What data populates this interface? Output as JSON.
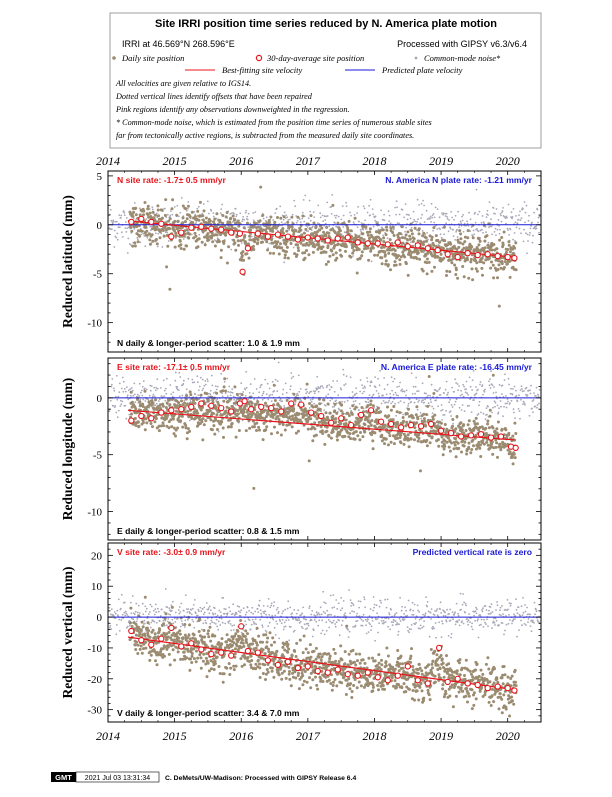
{
  "header": {
    "title": "Site IRRI position time series reduced by N. America plate motion",
    "site_coords": "IRRI at 46.569°N 268.596°E",
    "processed": "Processed with GIPSY v6.3/v6.4",
    "legend": {
      "daily": "Daily site position",
      "avg30": "30-day-average site position",
      "cm_noise": "Common-mode noise*",
      "best_fit": "Best-fitting site velocity",
      "predicted": "Predicted plate velocity"
    },
    "notes": [
      "All velocities are given relative to IGS14.",
      "Dotted vertical lines identify offsets that have been repaired",
      "Pink regions identify any observations downweighted in the regression.",
      "* Common-mode noise, which is estimated from the position time series of numerous stable sites",
      "far from tectonically active regions, is subtracted from the measured daily site coordinates."
    ]
  },
  "colors": {
    "daily": "#9b8b70",
    "avg30": "#e8141c",
    "cm_noise": "#a8a8b8",
    "best_fit": "#e8141c",
    "predicted": "#1a1ad8",
    "panel_border": "#000000"
  },
  "chart_data": [
    {
      "type": "scatter",
      "component": "N",
      "ylabel": "Reduced latitude (mm)",
      "xlim": [
        2014.0,
        2020.5
      ],
      "ylim": [
        -13,
        5.5
      ],
      "yticks": [
        5,
        0,
        -5,
        -10
      ],
      "xticks": [
        2014,
        2015,
        2016,
        2017,
        2018,
        2019,
        2020
      ],
      "site_rate_text": "N site rate:  -1.7± 0.5 mm/yr",
      "plate_rate_text": "N. America N plate rate: -1.21 mm/yr",
      "scatter_text": "N daily & longer-period scatter:   1.0 &   1.9 mm",
      "fit_line": {
        "x": [
          2014.3,
          2020.1
        ],
        "y": [
          0.4,
          -3.3
        ]
      },
      "predicted_line": {
        "y": 0
      },
      "avg30": [
        [
          2014.35,
          0.3
        ],
        [
          2014.5,
          0.6
        ],
        [
          2014.65,
          0.3
        ],
        [
          2014.8,
          0.1
        ],
        [
          2014.95,
          -1.2
        ],
        [
          2015.1,
          -0.8
        ],
        [
          2015.25,
          -0.3
        ],
        [
          2015.4,
          -0.2
        ],
        [
          2015.55,
          -0.4
        ],
        [
          2015.7,
          -0.5
        ],
        [
          2015.85,
          -0.8
        ],
        [
          2015.98,
          -0.9
        ],
        [
          2016.02,
          -4.8
        ],
        [
          2016.1,
          -2.4
        ],
        [
          2016.25,
          -0.9
        ],
        [
          2016.4,
          -1.2
        ],
        [
          2016.55,
          -1.0
        ],
        [
          2016.7,
          -1.2
        ],
        [
          2016.85,
          -1.5
        ],
        [
          2017.0,
          -1.3
        ],
        [
          2017.15,
          -1.4
        ],
        [
          2017.3,
          -1.6
        ],
        [
          2017.45,
          -1.4
        ],
        [
          2017.6,
          -1.3
        ],
        [
          2017.75,
          -1.8
        ],
        [
          2017.9,
          -1.9
        ],
        [
          2018.05,
          -1.9
        ],
        [
          2018.2,
          -2.0
        ],
        [
          2018.35,
          -1.8
        ],
        [
          2018.5,
          -2.2
        ],
        [
          2018.65,
          -2.1
        ],
        [
          2018.8,
          -2.4
        ],
        [
          2018.95,
          -2.6
        ],
        [
          2019.1,
          -3.0
        ],
        [
          2019.25,
          -3.3
        ],
        [
          2019.4,
          -2.9
        ],
        [
          2019.55,
          -3.1
        ],
        [
          2019.7,
          -3.0
        ],
        [
          2019.85,
          -3.2
        ],
        [
          2020.0,
          -3.3
        ],
        [
          2020.1,
          -3.4
        ]
      ]
    },
    {
      "type": "scatter",
      "component": "E",
      "ylabel": "Reduced longitude (mm)",
      "xlim": [
        2014.0,
        2020.5
      ],
      "ylim": [
        -12.5,
        3.5
      ],
      "yticks": [
        0,
        -5,
        -10
      ],
      "xticks": [
        2014,
        2015,
        2016,
        2017,
        2018,
        2019,
        2020
      ],
      "site_rate_text": "E site rate:  -17.1± 0.5 mm/yr",
      "plate_rate_text": "N. America E plate rate: -16.45 mm/yr",
      "scatter_text": "E daily & longer-period scatter:   0.8 &   1.5 mm",
      "fit_line": {
        "x": [
          2014.3,
          2020.1
        ],
        "y": [
          -1.1,
          -3.7
        ]
      },
      "predicted_line": {
        "y": 0
      },
      "avg30": [
        [
          2014.35,
          -2.0
        ],
        [
          2014.5,
          -1.6
        ],
        [
          2014.65,
          -1.8
        ],
        [
          2014.8,
          -1.3
        ],
        [
          2014.95,
          -1.1
        ],
        [
          2015.1,
          -1.0
        ],
        [
          2015.25,
          -0.8
        ],
        [
          2015.4,
          -0.5
        ],
        [
          2015.55,
          -0.7
        ],
        [
          2015.7,
          -0.9
        ],
        [
          2015.85,
          -1.2
        ],
        [
          2015.98,
          -0.5
        ],
        [
          2016.05,
          -0.3
        ],
        [
          2016.15,
          -1.0
        ],
        [
          2016.3,
          -0.8
        ],
        [
          2016.45,
          -0.9
        ],
        [
          2016.6,
          -1.2
        ],
        [
          2016.75,
          -0.5
        ],
        [
          2016.9,
          -0.6
        ],
        [
          2017.05,
          -1.3
        ],
        [
          2017.2,
          -1.6
        ],
        [
          2017.35,
          -2.2
        ],
        [
          2017.5,
          -1.8
        ],
        [
          2017.65,
          -2.4
        ],
        [
          2017.8,
          -1.5
        ],
        [
          2017.95,
          -1.1
        ],
        [
          2018.1,
          -2.1
        ],
        [
          2018.25,
          -2.3
        ],
        [
          2018.4,
          -2.6
        ],
        [
          2018.55,
          -2.4
        ],
        [
          2018.7,
          -2.5
        ],
        [
          2018.85,
          -2.3
        ],
        [
          2019.0,
          -2.9
        ],
        [
          2019.15,
          -3.1
        ],
        [
          2019.3,
          -3.4
        ],
        [
          2019.45,
          -3.3
        ],
        [
          2019.6,
          -3.2
        ],
        [
          2019.75,
          -3.5
        ],
        [
          2019.9,
          -3.4
        ],
        [
          2020.05,
          -4.3
        ],
        [
          2020.12,
          -4.4
        ]
      ]
    },
    {
      "type": "scatter",
      "component": "V",
      "ylabel": "Reduced vertical (mm)",
      "xlim": [
        2014.0,
        2020.5
      ],
      "ylim": [
        -34,
        24
      ],
      "yticks": [
        20,
        10,
        0,
        -10,
        -20,
        -30
      ],
      "xticks": [
        2014,
        2015,
        2016,
        2017,
        2018,
        2019,
        2020
      ],
      "site_rate_text": "V site rate:  -3.0± 0.9 mm/yr",
      "plate_rate_text": "Predicted vertical rate is zero",
      "scatter_text": "V daily & longer-period scatter:   3.4 &   7.0 mm",
      "fit_line": {
        "x": [
          2014.3,
          2020.1
        ],
        "y": [
          -6.5,
          -23.5
        ]
      },
      "predicted_line": {
        "y": 0
      },
      "avg30": [
        [
          2014.35,
          -4.5
        ],
        [
          2014.5,
          -7.5
        ],
        [
          2014.65,
          -9.0
        ],
        [
          2014.8,
          -7.0
        ],
        [
          2014.95,
          -3.5
        ],
        [
          2015.1,
          -9.5
        ],
        [
          2015.25,
          -8.5
        ],
        [
          2015.4,
          -10.5
        ],
        [
          2015.55,
          -12.0
        ],
        [
          2015.7,
          -11.5
        ],
        [
          2015.85,
          -12.5
        ],
        [
          2016.0,
          -3.0
        ],
        [
          2016.1,
          -11.0
        ],
        [
          2016.25,
          -11.5
        ],
        [
          2016.4,
          -14.0
        ],
        [
          2016.55,
          -15.5
        ],
        [
          2016.7,
          -14.5
        ],
        [
          2016.85,
          -16.5
        ],
        [
          2017.0,
          -16.0
        ],
        [
          2017.15,
          -17.5
        ],
        [
          2017.3,
          -18.0
        ],
        [
          2017.45,
          -17.0
        ],
        [
          2017.6,
          -18.5
        ],
        [
          2017.75,
          -19.0
        ],
        [
          2017.9,
          -18.0
        ],
        [
          2018.05,
          -19.5
        ],
        [
          2018.2,
          -20.5
        ],
        [
          2018.35,
          -19.0
        ],
        [
          2018.5,
          -16.0
        ],
        [
          2018.65,
          -20.5
        ],
        [
          2018.8,
          -21.5
        ],
        [
          2018.97,
          -10.0
        ],
        [
          2019.1,
          -21.0
        ],
        [
          2019.25,
          -20.0
        ],
        [
          2019.4,
          -21.5
        ],
        [
          2019.55,
          -22.0
        ],
        [
          2019.7,
          -23.0
        ],
        [
          2019.85,
          -22.5
        ],
        [
          2020.0,
          -23.0
        ],
        [
          2020.1,
          -23.8
        ]
      ]
    }
  ],
  "footer": {
    "logo": "GMT",
    "timestamp": "2021 Jul 03 13:31:34",
    "credit": "C. DeMets/UW-Madison: Processed with GIPSY Release 6.4"
  }
}
